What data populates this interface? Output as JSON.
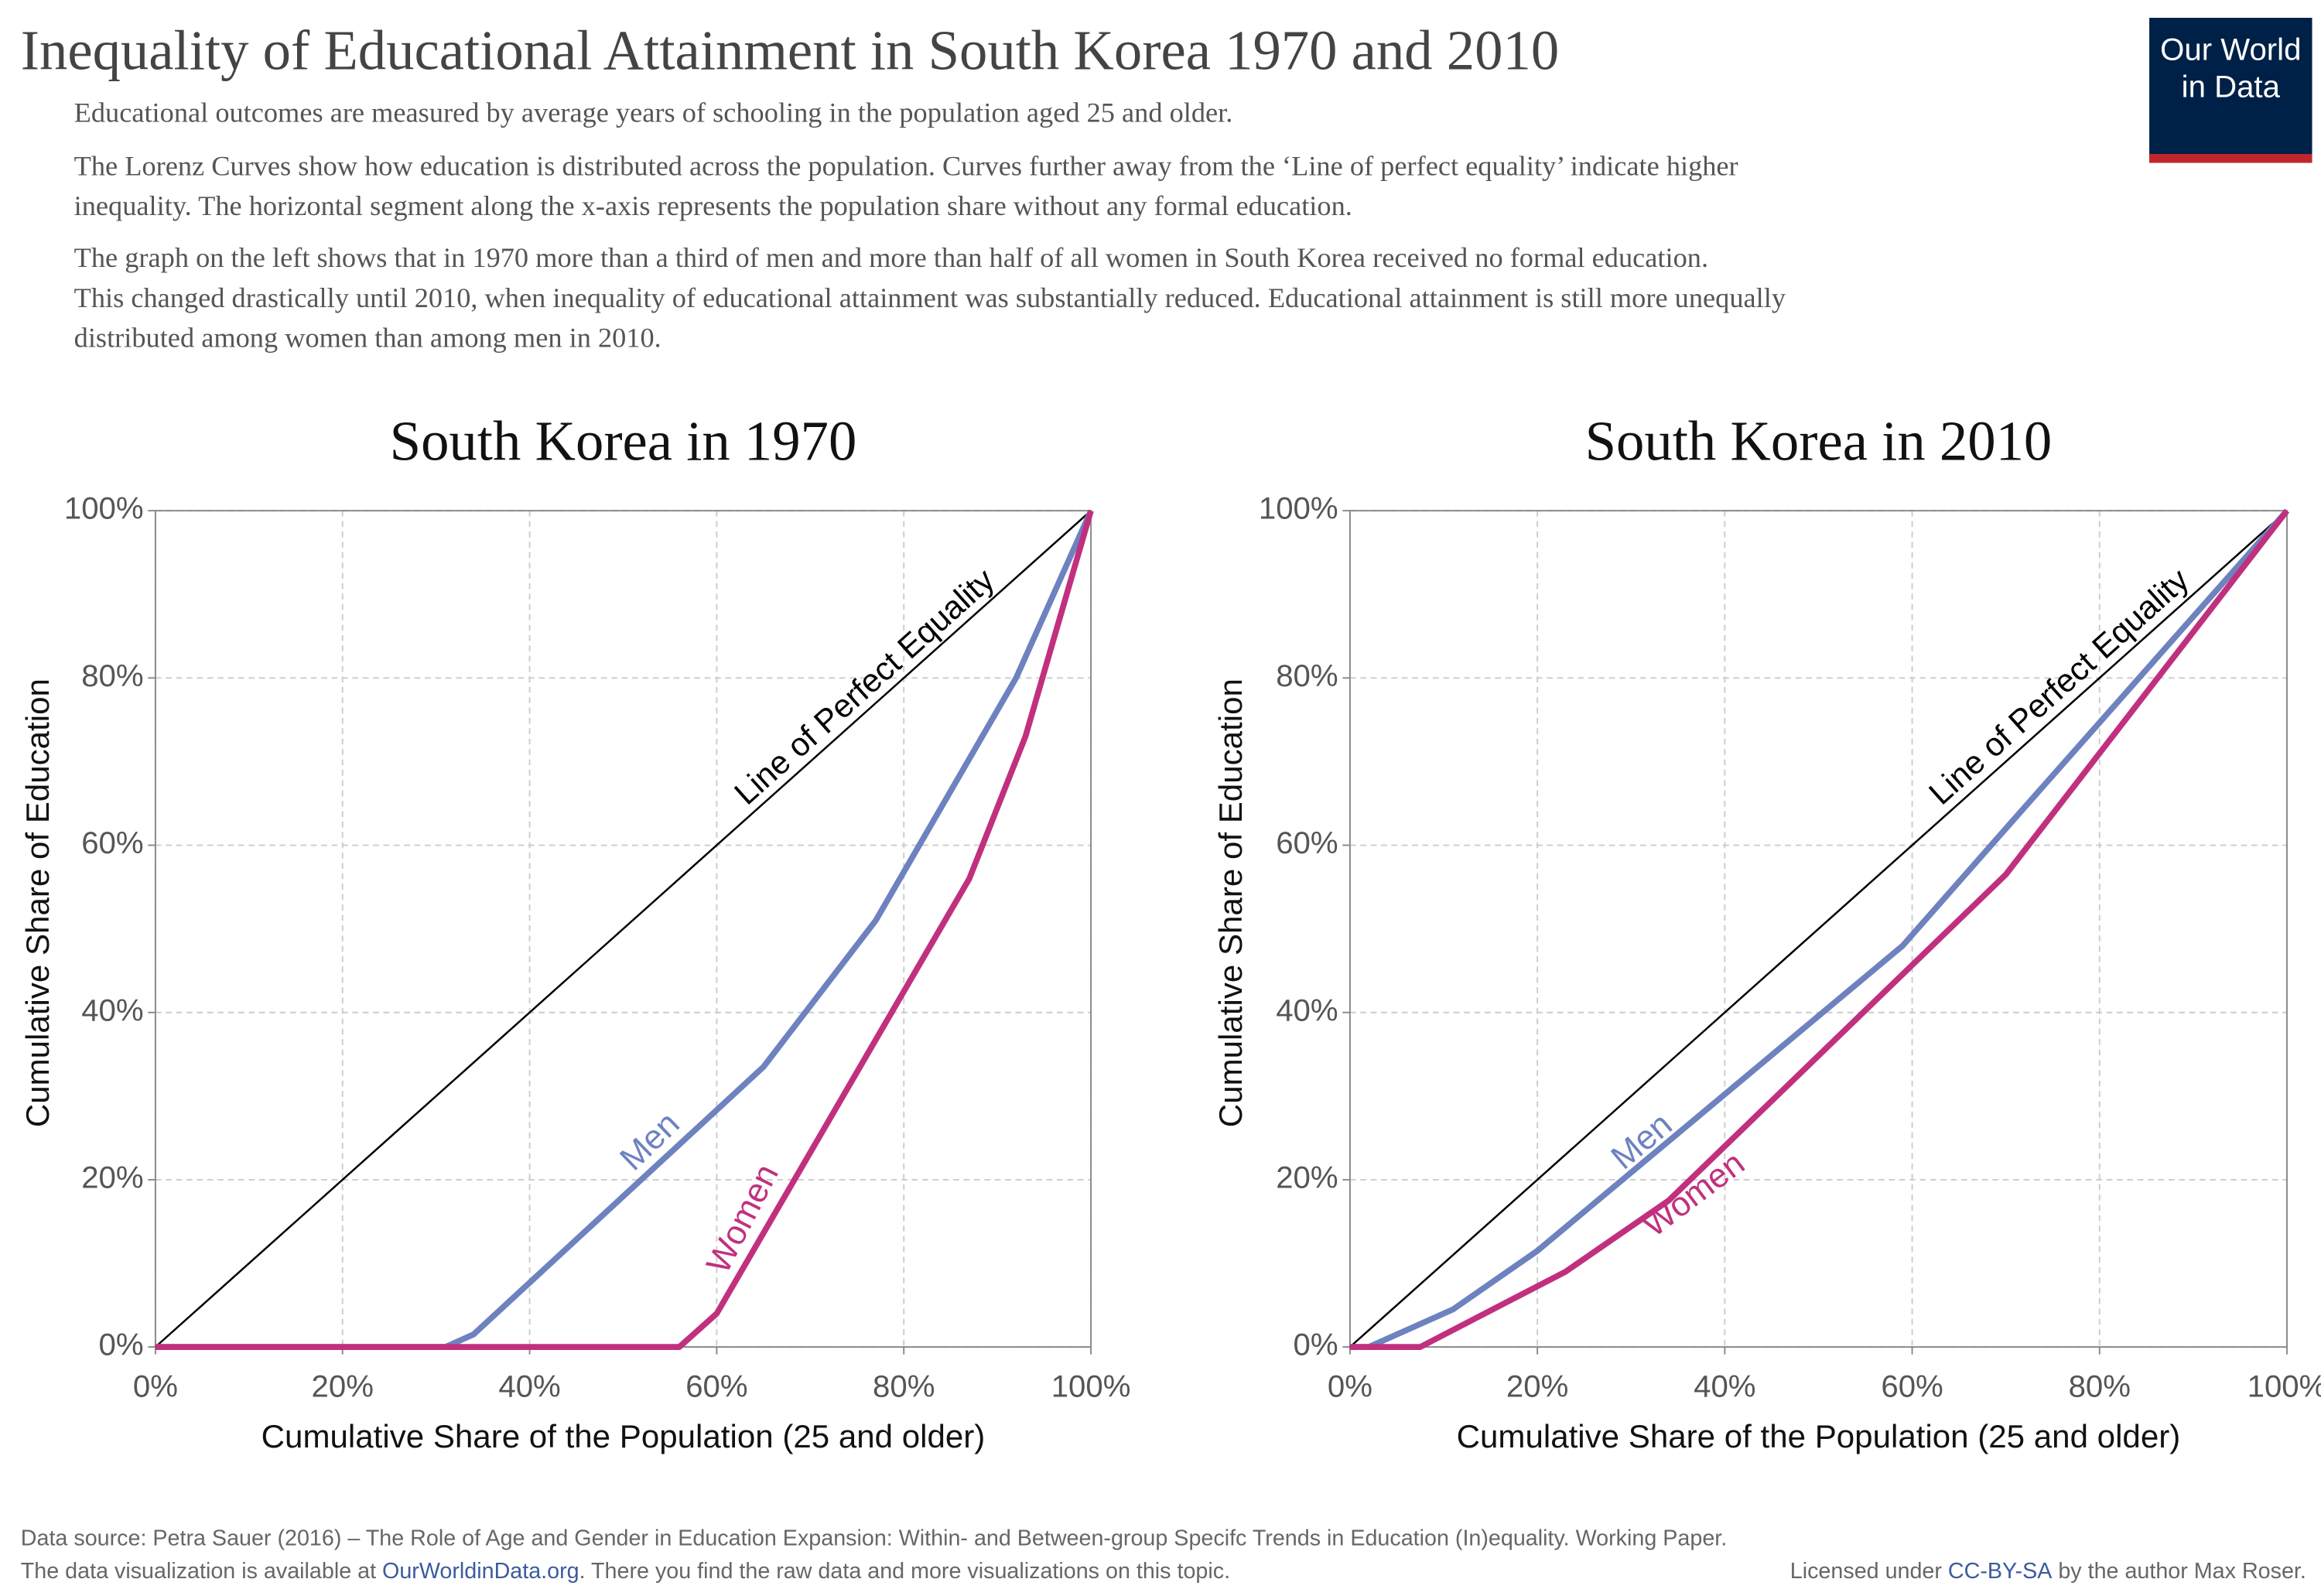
{
  "header": {
    "title": "Inequality of Educational Attainment in South Korea 1970 and 2010",
    "logo": [
      "Our World",
      "in Data"
    ],
    "paragraphs": [
      [
        "Educational outcomes are measured by average years of schooling in the population aged 25 and older."
      ],
      [
        "The Lorenz Curves show how education is distributed across the population. Curves further away from the ‘Line of perfect equality’ indicate higher",
        "inequality. The horizontal segment along the x-axis represents the population share without any formal education."
      ],
      [
        "The graph on the left shows that in 1970 more than a third of men and more than half of all women in South Korea received no formal education.",
        "This changed drastically until 2010, when inequality of educational attainment was substantially reduced. Educational attainment is still more unequally",
        "distributed among women than among men in 2010."
      ]
    ]
  },
  "chart_data": [
    {
      "type": "line",
      "title": "South Korea in 1970",
      "x_label": "Cumulative Share of the Population (25 and older)",
      "y_label": "Cumulative Share of Education",
      "xlim": [
        0,
        100
      ],
      "ylim": [
        0,
        100
      ],
      "grid": true,
      "xticks": [
        {
          "value": 0,
          "label": "0%"
        },
        {
          "value": 20,
          "label": "20%"
        },
        {
          "value": 40,
          "label": "40%"
        },
        {
          "value": 60,
          "label": "60%"
        },
        {
          "value": 80,
          "label": "80%"
        },
        {
          "value": 100,
          "label": "100%"
        }
      ],
      "yticks": [
        {
          "value": 0,
          "label": "0%"
        },
        {
          "value": 20,
          "label": "20%"
        },
        {
          "value": 40,
          "label": "40%"
        },
        {
          "value": 60,
          "label": "60%"
        },
        {
          "value": 80,
          "label": "80%"
        },
        {
          "value": 100,
          "label": "100%"
        }
      ],
      "series": [
        {
          "name": "Line of Perfect Equality",
          "color": "#000000",
          "x": [
            0,
            100
          ],
          "values": [
            0,
            100
          ]
        },
        {
          "name": "Men",
          "color": "#6d82bf",
          "x": [
            0,
            31,
            34,
            65,
            77,
            92,
            100
          ],
          "values": [
            0,
            0,
            1.5,
            33.5,
            51,
            80,
            100
          ]
        },
        {
          "name": "Women",
          "color": "#c1307e",
          "x": [
            0,
            56,
            60,
            87,
            93,
            100
          ],
          "values": [
            0,
            0,
            4,
            56,
            73,
            100
          ]
        }
      ]
    },
    {
      "type": "line",
      "title": "South Korea in 2010",
      "x_label": "Cumulative Share of the Population (25 and older)",
      "y_label": "Cumulative Share of Education",
      "xlim": [
        0,
        100
      ],
      "ylim": [
        0,
        100
      ],
      "grid": true,
      "xticks": [
        {
          "value": 0,
          "label": "0%"
        },
        {
          "value": 20,
          "label": "20%"
        },
        {
          "value": 40,
          "label": "40%"
        },
        {
          "value": 60,
          "label": "60%"
        },
        {
          "value": 80,
          "label": "80%"
        },
        {
          "value": 100,
          "label": "100%"
        }
      ],
      "yticks": [
        {
          "value": 0,
          "label": "0%"
        },
        {
          "value": 20,
          "label": "20%"
        },
        {
          "value": 40,
          "label": "40%"
        },
        {
          "value": 60,
          "label": "60%"
        },
        {
          "value": 80,
          "label": "80%"
        },
        {
          "value": 100,
          "label": "100%"
        }
      ],
      "series": [
        {
          "name": "Line of Perfect Equality",
          "color": "#000000",
          "x": [
            0,
            100
          ],
          "values": [
            0,
            100
          ]
        },
        {
          "name": "Men",
          "color": "#6d82bf",
          "x": [
            0,
            2,
            11,
            20,
            59,
            70,
            100
          ],
          "values": [
            0,
            0,
            4.5,
            11.5,
            48,
            62,
            100
          ]
        },
        {
          "name": "Women",
          "color": "#c1307e",
          "x": [
            0,
            7.5,
            23,
            34,
            70,
            100
          ],
          "values": [
            0,
            0,
            9,
            17.5,
            56.5,
            100
          ]
        }
      ]
    }
  ],
  "footer": {
    "source": "Data source: Petra Sauer (2016) – The Role of Age and Gender in Education Expansion: Within- and Between-group Specifc Trends in Education (In)equality. Working Paper.",
    "note": [
      "The data visualization is available at ",
      "OurWorldinData.org",
      ". There you find the raw data and more visualizations on this topic."
    ],
    "license": [
      "Licensed under ",
      "CC-BY-SA",
      " by the author Max Roser."
    ]
  }
}
